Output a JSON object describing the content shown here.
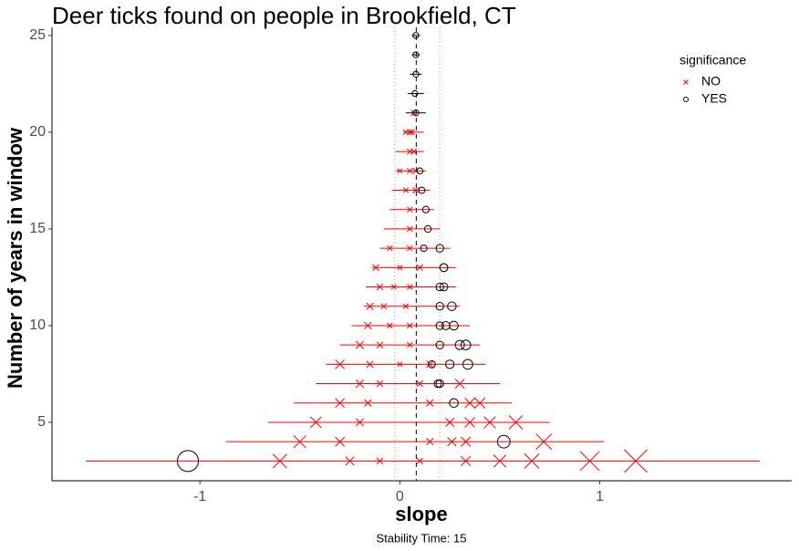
{
  "chart_data": {
    "type": "scatter",
    "title": "Deer ticks found on people in Brookfield, CT",
    "x_label": "slope",
    "y_label": "Number of years in window",
    "caption": "Stability Time: 15",
    "legend_title": "significance",
    "legend_position": "top-right",
    "xlim": [
      -1.74,
      1.96
    ],
    "ylim": [
      1.98,
      25.42
    ],
    "xticks": [
      -1,
      0,
      1
    ],
    "yticks": [
      5,
      10,
      15,
      20,
      25
    ],
    "reference_line": 0.082,
    "band": [
      -0.027,
      0.2
    ],
    "series": [
      {
        "name": "NO",
        "color": "#ff0000",
        "marker": "x",
        "x": [
          0.07,
          0.03,
          0.05,
          0.06,
          0.05,
          0.07,
          0.0,
          0.05,
          0.08,
          0.03,
          0.08,
          0.05,
          0.05,
          -0.05,
          0.05,
          -0.12,
          0.0,
          0.1,
          -0.1,
          -0.03,
          0.05,
          -0.15,
          -0.08,
          0.03,
          -0.16,
          -0.05,
          0.05,
          -0.2,
          -0.1,
          0.05,
          -0.3,
          -0.15,
          0.0,
          0.15,
          -0.2,
          -0.1,
          0.1,
          0.3,
          -0.3,
          -0.16,
          0.15,
          0.35,
          0.4,
          -0.42,
          -0.2,
          0.25,
          0.35,
          0.45,
          0.58,
          -0.5,
          -0.3,
          0.15,
          0.26,
          0.33,
          0.72,
          -0.6,
          -0.25,
          -0.1,
          0.1,
          0.33,
          0.5,
          0.66,
          0.95,
          1.18
        ],
        "values": [
          21,
          20,
          20,
          20,
          19,
          19,
          18,
          18,
          18,
          17,
          17,
          16,
          15,
          14,
          14,
          13,
          13,
          13,
          12,
          12,
          12,
          11,
          11,
          11,
          10,
          10,
          10,
          9,
          9,
          9,
          8,
          8,
          8,
          8,
          7,
          7,
          7,
          7,
          6,
          6,
          6,
          6,
          6,
          5,
          5,
          5,
          5,
          5,
          5,
          4,
          4,
          4,
          4,
          4,
          4,
          3,
          3,
          3,
          3,
          3,
          3,
          3,
          3,
          3
        ]
      },
      {
        "name": "YES",
        "color": "#000000",
        "marker": "o",
        "x": [
          0.08,
          0.08,
          0.08,
          0.075,
          0.08,
          0.1,
          0.11,
          0.13,
          0.14,
          0.12,
          0.2,
          0.22,
          0.22,
          0.2,
          0.22,
          0.2,
          0.26,
          0.2,
          0.23,
          0.27,
          0.2,
          0.3,
          0.33,
          0.16,
          0.25,
          0.34,
          0.19,
          0.2,
          0.27,
          0.52,
          -1.06
        ],
        "values": [
          25,
          24,
          23,
          22,
          21,
          18,
          17,
          16,
          15,
          14,
          14,
          13,
          13,
          12,
          12,
          11,
          11,
          10,
          10,
          10,
          9,
          9,
          9,
          8,
          8,
          8,
          7,
          7,
          6,
          4,
          3
        ]
      }
    ],
    "error_bars": {
      "y": [
        25,
        24,
        23,
        22,
        21,
        20,
        19,
        18,
        17,
        16,
        15,
        14,
        13,
        12,
        11,
        10,
        9,
        8,
        7,
        6,
        5,
        4,
        3
      ],
      "xmin": [
        0.06,
        0.06,
        0.05,
        0.04,
        0.03,
        0.02,
        -0.02,
        -0.02,
        -0.04,
        -0.05,
        -0.08,
        -0.1,
        -0.14,
        -0.17,
        -0.18,
        -0.24,
        -0.3,
        -0.37,
        -0.42,
        -0.53,
        -0.66,
        -0.87,
        -1.57
      ],
      "xmax": [
        0.1,
        0.1,
        0.11,
        0.12,
        0.13,
        0.12,
        0.12,
        0.13,
        0.15,
        0.17,
        0.2,
        0.25,
        0.28,
        0.28,
        0.3,
        0.35,
        0.4,
        0.43,
        0.5,
        0.56,
        0.75,
        1.02,
        1.8
      ],
      "color": [
        "#000000",
        "#000000",
        "#000000",
        "#000000",
        "#000000",
        "#ff0000",
        "#ff0000",
        "#ff0000",
        "#ff0000",
        "#ff0000",
        "#ff0000",
        "#ff0000",
        "#ff0000",
        "#ff0000",
        "#ff0000",
        "#ff0000",
        "#ff0000",
        "#ff0000",
        "#ff0000",
        "#ff0000",
        "#ff0000",
        "#ff0000",
        "#ff0000"
      ]
    }
  }
}
